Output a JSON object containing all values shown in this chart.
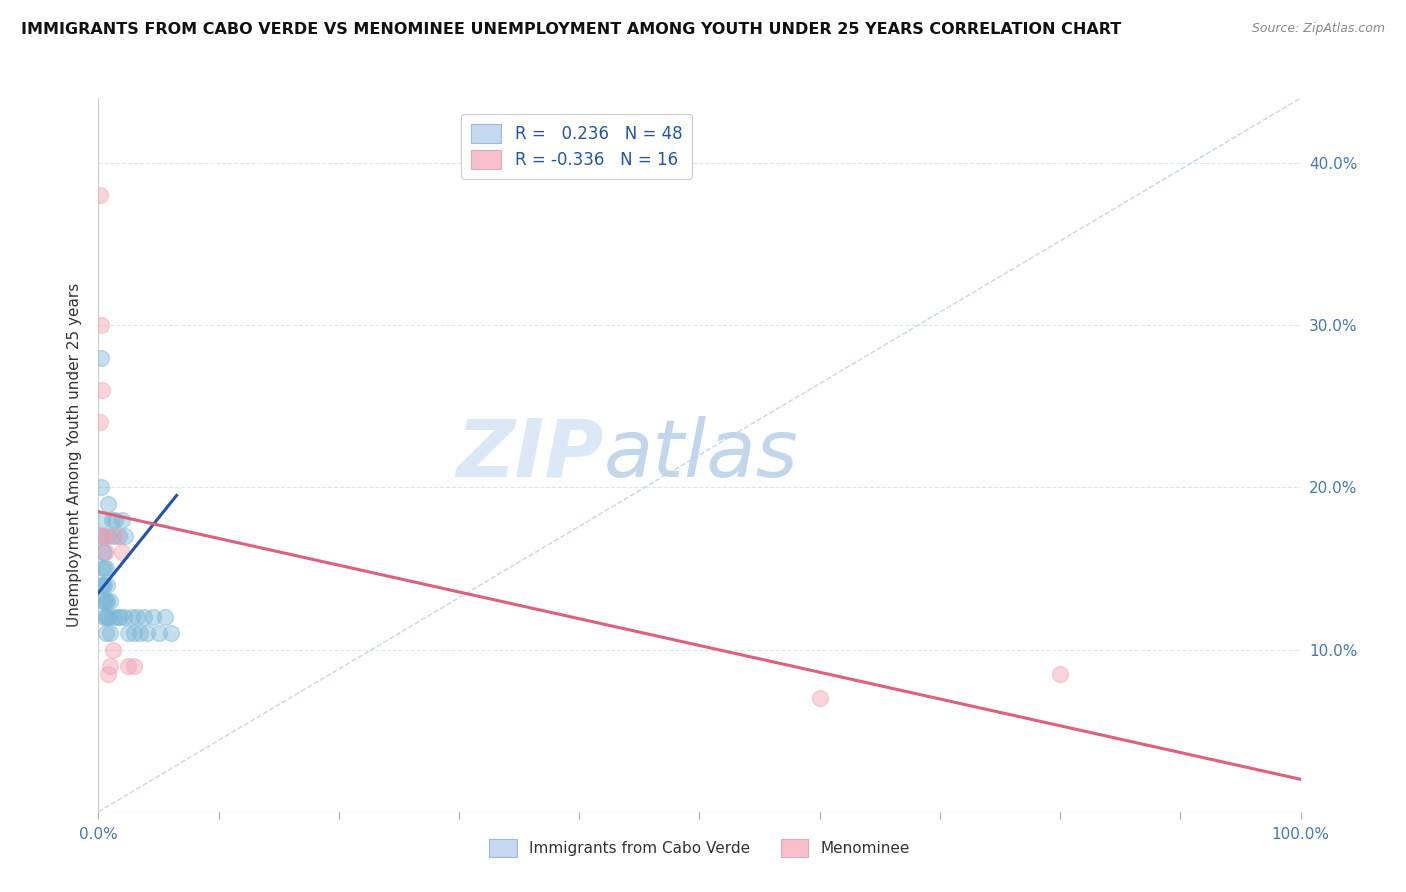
{
  "title": "IMMIGRANTS FROM CABO VERDE VS MENOMINEE UNEMPLOYMENT AMONG YOUTH UNDER 25 YEARS CORRELATION CHART",
  "source": "Source: ZipAtlas.com",
  "ylabel": "Unemployment Among Youth under 25 years",
  "xlim": [
    0,
    1.0
  ],
  "ylim": [
    0,
    0.44
  ],
  "blue_color": "#7db8d8",
  "pink_color": "#f4a0b4",
  "blue_line_color": "#2255aa",
  "pink_line_color": "#e0607a",
  "dashed_line_color": "#b8cce4",
  "legend_blue_label": "R =   0.236   N = 48",
  "legend_pink_label": "R = -0.336   N = 16",
  "legend_blue_facecolor": "#c5d8f0",
  "legend_pink_facecolor": "#f9c0cc",
  "watermark_zip": "ZIP",
  "watermark_atlas": "atlas",
  "legend_bottom_blue": "Immigrants from Cabo Verde",
  "legend_bottom_pink": "Menominee",
  "blue_x": [
    0.001,
    0.002,
    0.002,
    0.003,
    0.003,
    0.003,
    0.004,
    0.004,
    0.004,
    0.005,
    0.005,
    0.005,
    0.005,
    0.005,
    0.006,
    0.006,
    0.006,
    0.006,
    0.007,
    0.007,
    0.007,
    0.008,
    0.008,
    0.009,
    0.01,
    0.01,
    0.011,
    0.012,
    0.013,
    0.014,
    0.016,
    0.017,
    0.018,
    0.02,
    0.021,
    0.022,
    0.025,
    0.028,
    0.03,
    0.032,
    0.035,
    0.038,
    0.04,
    0.045,
    0.05,
    0.055,
    0.06,
    0.002
  ],
  "blue_y": [
    0.17,
    0.14,
    0.2,
    0.18,
    0.15,
    0.13,
    0.16,
    0.14,
    0.17,
    0.15,
    0.13,
    0.12,
    0.16,
    0.14,
    0.15,
    0.13,
    0.12,
    0.11,
    0.14,
    0.13,
    0.12,
    0.19,
    0.17,
    0.12,
    0.13,
    0.11,
    0.18,
    0.17,
    0.12,
    0.18,
    0.12,
    0.17,
    0.12,
    0.18,
    0.12,
    0.17,
    0.11,
    0.12,
    0.11,
    0.12,
    0.11,
    0.12,
    0.11,
    0.12,
    0.11,
    0.12,
    0.11,
    0.28
  ],
  "pink_x": [
    0.001,
    0.002,
    0.003,
    0.004,
    0.005,
    0.006,
    0.01,
    0.012,
    0.015,
    0.02,
    0.025,
    0.03,
    0.6,
    0.8,
    0.001,
    0.008
  ],
  "pink_y": [
    0.38,
    0.3,
    0.26,
    0.17,
    0.17,
    0.16,
    0.09,
    0.1,
    0.17,
    0.16,
    0.09,
    0.09,
    0.07,
    0.085,
    0.24,
    0.085
  ],
  "blue_trend_x": [
    0.0,
    0.065
  ],
  "blue_trend_y": [
    0.135,
    0.195
  ],
  "pink_trend_x": [
    0.0,
    1.0
  ],
  "pink_trend_y": [
    0.185,
    0.02
  ],
  "dashed_trend_x": [
    0.0,
    1.0
  ],
  "dashed_trend_y": [
    0.0,
    0.44
  ],
  "grid_color": "#dce6f0",
  "title_fontsize": 11.5,
  "axis_tick_fontsize": 11,
  "legend_fontsize": 12
}
